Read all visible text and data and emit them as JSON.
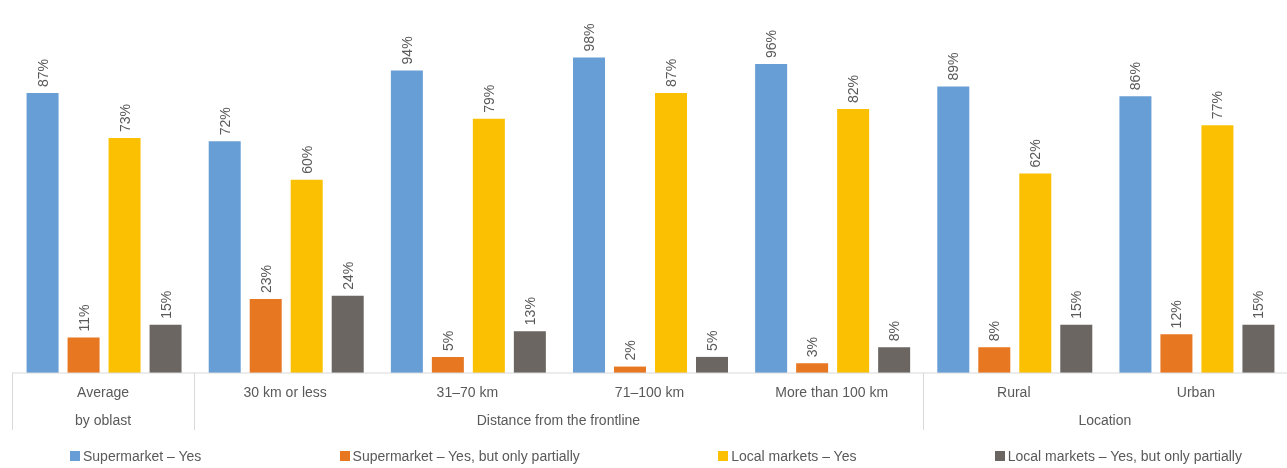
{
  "chart_data": {
    "type": "bar",
    "categories": [
      "Average",
      "30 km or less",
      "31–70 km",
      "71–100 km",
      "More than 100 km",
      "Rural",
      "Urban"
    ],
    "series": [
      {
        "name": "Supermarket – Yes",
        "color": "#679ed6",
        "values": [
          87,
          72,
          94,
          98,
          96,
          89,
          86
        ],
        "value_labels": [
          "87%",
          "72%",
          "94%",
          "98%",
          "96%",
          "89%",
          "86%"
        ]
      },
      {
        "name": "Supermarket – Yes, but only partially",
        "color": "#e87722",
        "values": [
          11,
          23,
          5,
          2,
          3,
          8,
          12
        ],
        "value_labels": [
          "11%",
          "23%",
          "5%",
          "2%",
          "3%",
          "8%",
          "12%"
        ]
      },
      {
        "name": "Local markets – Yes",
        "color": "#fbc002",
        "values": [
          73,
          60,
          79,
          87,
          82,
          62,
          77
        ],
        "value_labels": [
          "73%",
          "60%",
          "79%",
          "87%",
          "82%",
          "62%",
          "77%"
        ]
      },
      {
        "name": "Local markets – Yes, but only partially",
        "color": "#6b6662",
        "values": [
          15,
          24,
          13,
          5,
          8,
          15,
          15
        ],
        "value_labels": [
          "15%",
          "24%",
          "13%",
          "5%",
          "8%",
          "15%",
          "15%"
        ]
      }
    ],
    "annotations": [
      "by oblast",
      "Distance from the frontline",
      "Location"
    ],
    "legend": "bottom"
  }
}
